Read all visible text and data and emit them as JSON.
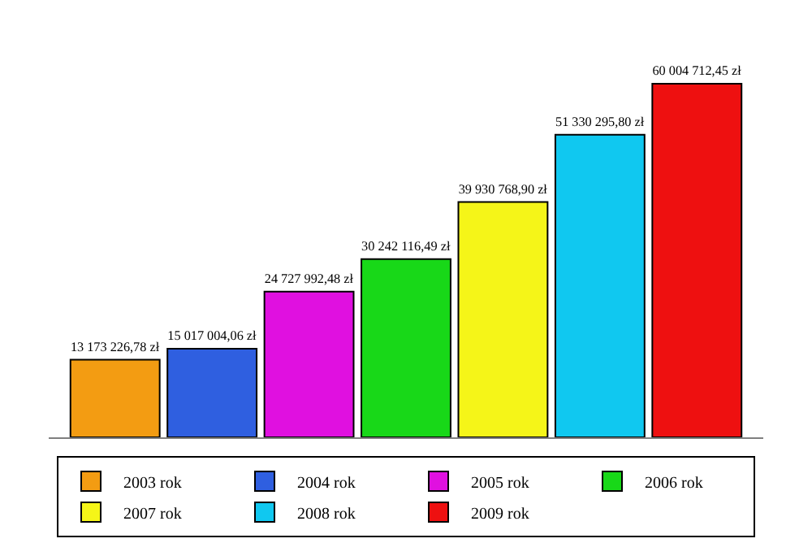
{
  "chart_data": {
    "type": "bar",
    "categories": [
      null
    ],
    "legend": "bottom",
    "series": [
      {
        "name": "2003 rok",
        "color": "#f39c12",
        "values": [
          13173226.78
        ],
        "value_labels": [
          "13 173 226,78 zł"
        ]
      },
      {
        "name": "2004 rok",
        "color": "#2f5fe0",
        "values": [
          15017004.06
        ],
        "value_labels": [
          "15 017 004,06 zł"
        ]
      },
      {
        "name": "2005 rok",
        "color": "#e010e0",
        "values": [
          24727992.48
        ],
        "value_labels": [
          "24 727 992,48 zł"
        ]
      },
      {
        "name": "2006 rok",
        "color": "#18d818",
        "values": [
          30242116.49
        ],
        "value_labels": [
          "30 242 116,49 zł"
        ]
      },
      {
        "name": "2007 rok",
        "color": "#f5f518",
        "values": [
          39930768.9
        ],
        "value_labels": [
          "39 930 768,90 zł"
        ]
      },
      {
        "name": "2008 rok",
        "color": "#10c8f0",
        "values": [
          51330295.8
        ],
        "value_labels": [
          "51 330 295,80 zł"
        ]
      },
      {
        "name": "2009 rok",
        "color": "#ee1010",
        "values": [
          60004712.45
        ],
        "value_labels": [
          "60 004 712,45 zł"
        ]
      }
    ]
  }
}
